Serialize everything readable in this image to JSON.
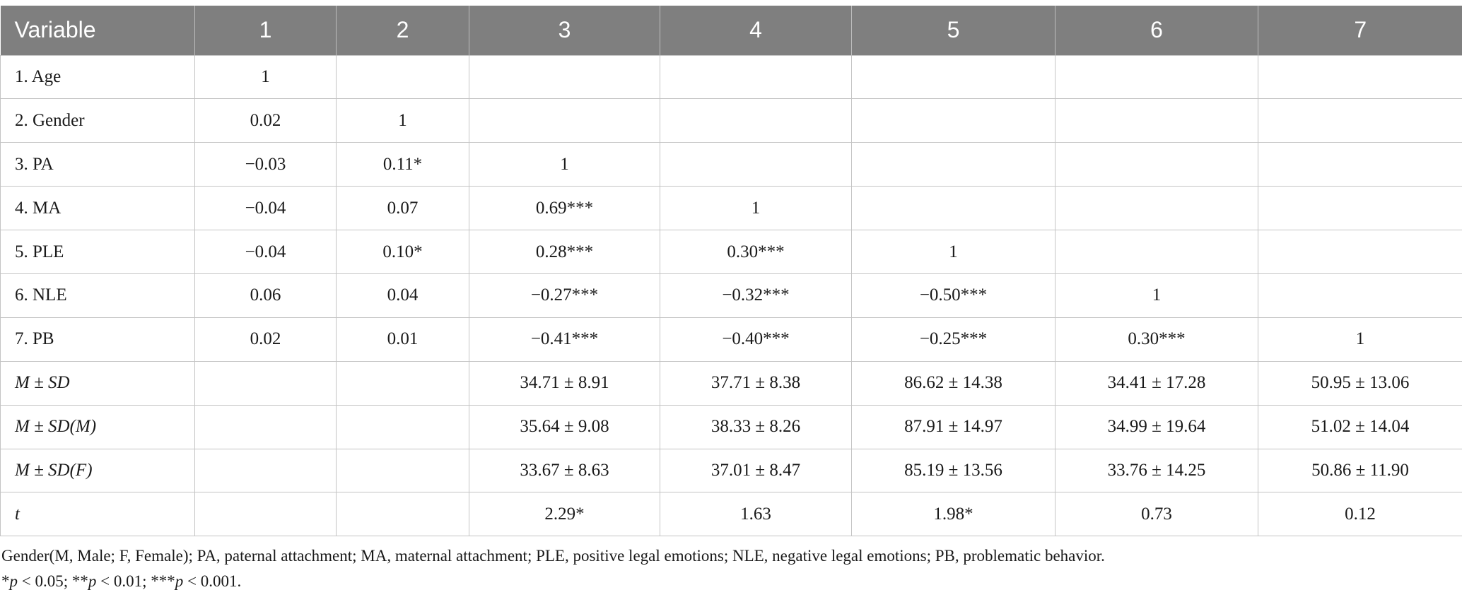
{
  "table": {
    "headers": [
      "Variable",
      "1",
      "2",
      "3",
      "4",
      "5",
      "6",
      "7"
    ],
    "rows": [
      [
        "1. Age",
        "1",
        "",
        "",
        "",
        "",
        "",
        ""
      ],
      [
        "2. Gender",
        "0.02",
        "1",
        "",
        "",
        "",
        "",
        ""
      ],
      [
        "3. PA",
        "−0.03",
        "0.11*",
        "1",
        "",
        "",
        "",
        ""
      ],
      [
        "4. MA",
        "−0.04",
        "0.07",
        "0.69***",
        "1",
        "",
        "",
        ""
      ],
      [
        "5. PLE",
        "−0.04",
        "0.10*",
        "0.28***",
        "0.30***",
        "1",
        "",
        ""
      ],
      [
        "6. NLE",
        "0.06",
        "0.04",
        "−0.27***",
        "−0.32***",
        "−0.50***",
        "1",
        ""
      ],
      [
        "7. PB",
        "0.02",
        "0.01",
        "−0.41***",
        "−0.40***",
        "−0.25***",
        "0.30***",
        "1"
      ],
      [
        "M ± SD",
        "",
        "",
        "34.71 ± 8.91",
        "37.71 ± 8.38",
        "86.62 ± 14.38",
        "34.41 ± 17.28",
        "50.95 ± 13.06"
      ],
      [
        "M ± SD(M)",
        "",
        "",
        "35.64 ± 9.08",
        "38.33 ± 8.26",
        "87.91 ± 14.97",
        "34.99 ± 19.64",
        "51.02 ± 14.04"
      ],
      [
        "M ± SD(F)",
        "",
        "",
        "33.67 ± 8.63",
        "37.01 ± 8.47",
        "85.19 ± 13.56",
        "33.76 ± 14.25",
        "50.86 ± 11.90"
      ],
      [
        "t",
        "",
        "",
        "2.29*",
        "1.63",
        "1.98*",
        "0.73",
        "0.12"
      ]
    ]
  },
  "footnotes": {
    "abbreviations": "Gender(M, Male; F, Female); PA, paternal attachment; MA, maternal attachment; PLE, positive legal emotions; NLE, negative legal emotions; PB, problematic behavior.",
    "significance": "*p < 0.05; **p < 0.01; ***p < 0.001."
  },
  "colors": {
    "header_background": "#7f7f7f",
    "header_text": "#ffffff",
    "grid_line": "#c4c4c4"
  }
}
